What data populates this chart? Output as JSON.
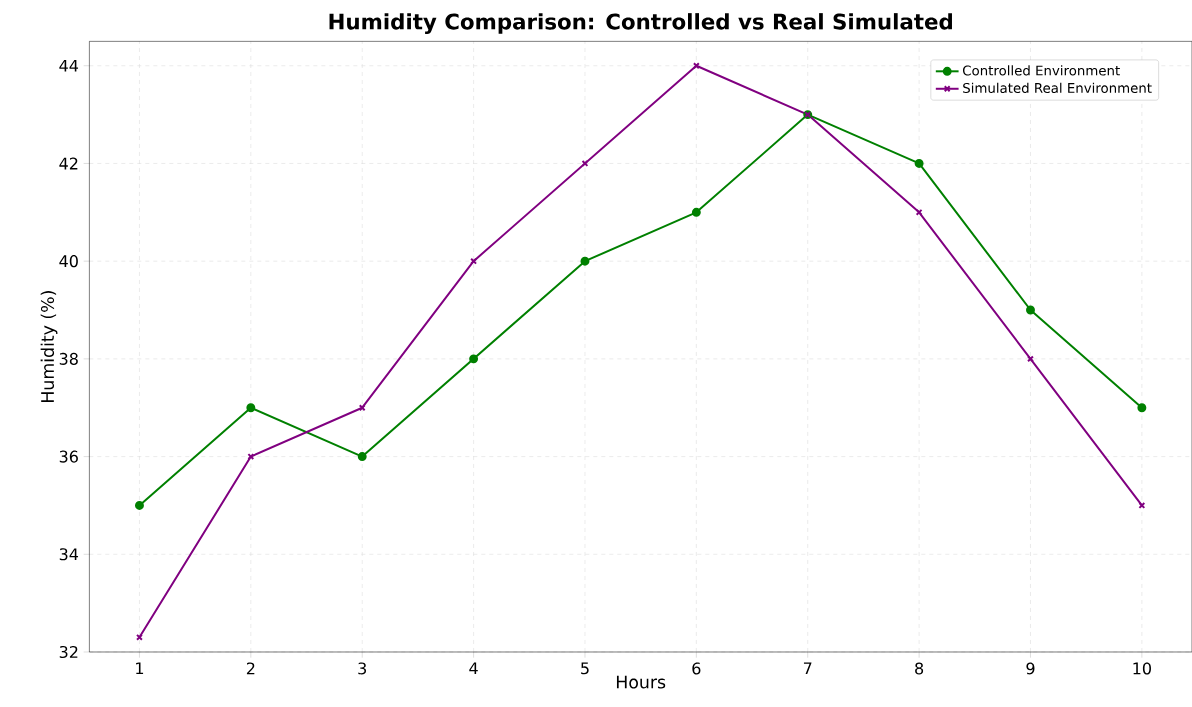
{
  "chart_data": {
    "type": "line",
    "title": "Humidity Comparison: Controlled vs Real Simulated",
    "xlabel": "Hours",
    "ylabel": "Humidity (%)",
    "x": [
      1,
      2,
      3,
      4,
      5,
      6,
      7,
      8,
      9,
      10
    ],
    "series": [
      {
        "name": "Controlled Environment",
        "color": "#008000",
        "marker": "circle",
        "values": [
          35,
          37,
          36,
          38,
          40,
          41,
          43,
          42,
          39,
          37
        ]
      },
      {
        "name": "Simulated Real Environment",
        "color": "#800080",
        "marker": "cross",
        "values": [
          32.3,
          36,
          37,
          40,
          42,
          44,
          43,
          41,
          38,
          35
        ]
      }
    ],
    "xlim": [
      0.55,
      10.45
    ],
    "ylim": [
      32,
      44.5
    ],
    "xticks": [
      1,
      2,
      3,
      4,
      5,
      6,
      7,
      8,
      9,
      10
    ],
    "yticks": [
      32,
      34,
      36,
      38,
      40,
      42,
      44
    ],
    "grid": true,
    "legend": "top right",
    "line_style": "solid"
  }
}
